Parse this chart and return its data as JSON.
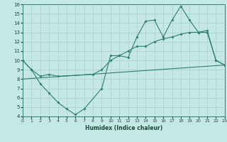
{
  "bg_color": "#c6e8e4",
  "grid_color": "#aed4cf",
  "line_color": "#2e7e72",
  "xlabel": "Humidex (Indice chaleur)",
  "xlim": [
    0,
    23
  ],
  "ylim": [
    4,
    16
  ],
  "yticks": [
    4,
    5,
    6,
    7,
    8,
    9,
    10,
    11,
    12,
    13,
    14,
    15,
    16
  ],
  "xticks": [
    0,
    1,
    2,
    3,
    4,
    5,
    6,
    7,
    8,
    9,
    10,
    11,
    12,
    13,
    14,
    15,
    16,
    17,
    18,
    19,
    20,
    21,
    22,
    23
  ],
  "line1_x": [
    0,
    1,
    2,
    3,
    4,
    5,
    6,
    7,
    9,
    10,
    11,
    12,
    13,
    14,
    15,
    16,
    17,
    18,
    19,
    20,
    21,
    22,
    23
  ],
  "line1_y": [
    10,
    9,
    7.5,
    6.5,
    5.5,
    4.8,
    4.2,
    4.8,
    7.0,
    10.5,
    10.5,
    10.3,
    12.5,
    14.2,
    14.3,
    12.5,
    14.3,
    15.8,
    14.3,
    13.0,
    13.0,
    10.0,
    9.5
  ],
  "line2_x": [
    0,
    1,
    2,
    3,
    4,
    8,
    9,
    10,
    11,
    12,
    13,
    14,
    15,
    16,
    17,
    18,
    19,
    20,
    21,
    22,
    23
  ],
  "line2_y": [
    10,
    9,
    8.3,
    8.5,
    8.3,
    8.5,
    9.0,
    10.0,
    10.5,
    11.0,
    11.5,
    11.5,
    12.0,
    12.3,
    12.5,
    12.8,
    13.0,
    13.0,
    13.2,
    10.0,
    9.5
  ],
  "line3_x": [
    0,
    23
  ],
  "line3_y": [
    8.0,
    9.5
  ]
}
